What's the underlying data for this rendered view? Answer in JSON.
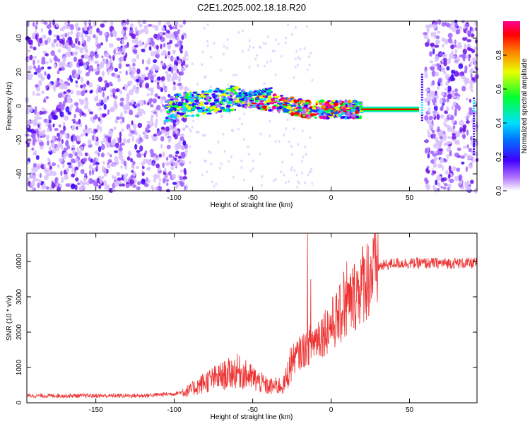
{
  "title": "C2E1.2025.002.18.18.R20",
  "chart_data": [
    {
      "type": "heatmap",
      "xlabel": "Height of straight line (km)",
      "ylabel": "Frequency (Hz)",
      "xlim": [
        -194,
        93
      ],
      "ylim": [
        -50,
        50
      ],
      "xticks": [
        -150,
        -100,
        -50,
        0,
        50
      ],
      "yticks": [
        -40,
        -20,
        0,
        20,
        40
      ],
      "colorbar": {
        "label": "Normalized spectral amplitude",
        "range": [
          0,
          1
        ],
        "ticks": [
          "0.0",
          "0.2",
          "0.4",
          "0.6",
          "0.8"
        ],
        "tick_values": [
          0,
          0.2,
          0.4,
          0.6,
          0.8
        ],
        "colormap": [
          "#ffffff",
          "#8000ff",
          "#0000ff",
          "#00d8ff",
          "#00ff40",
          "#e0ff00",
          "#ff8000",
          "#ff0000",
          "#ff0080"
        ]
      },
      "features": {
        "noise_regions_km": [
          [
            -194,
            -92
          ],
          [
            60,
            93
          ]
        ],
        "signal_ridge": [
          {
            "x": -100,
            "y": 0
          },
          {
            "x": -80,
            "y": 2
          },
          {
            "x": -60,
            "y": 5
          },
          {
            "x": -45,
            "y": 3
          },
          {
            "x": -30,
            "y": 1
          },
          {
            "x": -15,
            "y": -2
          },
          {
            "x": 0,
            "y": -2
          },
          {
            "x": 20,
            "y": -2
          },
          {
            "x": 56,
            "y": -2
          }
        ]
      }
    },
    {
      "type": "line",
      "xlabel": "Height of straight line (km)",
      "ylabel": "SNR (10 * v/v)",
      "xlim": [
        -194,
        93
      ],
      "ylim": [
        0,
        4800
      ],
      "xticks": [
        -150,
        -100,
        -50,
        0,
        50
      ],
      "yticks": [
        0,
        1000,
        2000,
        3000,
        4000
      ],
      "color": "#ee3333",
      "series": [
        {
          "trend": [
            {
              "x": -194,
              "y": 200
            },
            {
              "x": -120,
              "y": 200
            },
            {
              "x": -100,
              "y": 260
            },
            {
              "x": -90,
              "y": 350
            },
            {
              "x": -80,
              "y": 600
            },
            {
              "x": -70,
              "y": 750
            },
            {
              "x": -60,
              "y": 900
            },
            {
              "x": -50,
              "y": 700
            },
            {
              "x": -40,
              "y": 450
            },
            {
              "x": -30,
              "y": 500
            },
            {
              "x": -25,
              "y": 1200
            },
            {
              "x": -15,
              "y": 1600
            },
            {
              "x": 0,
              "y": 2200
            },
            {
              "x": 10,
              "y": 2700
            },
            {
              "x": 20,
              "y": 3400
            },
            {
              "x": 30,
              "y": 3850
            },
            {
              "x": 40,
              "y": 3950
            },
            {
              "x": 93,
              "y": 3950
            }
          ],
          "spikes": [
            {
              "x": -15,
              "y": 4800
            },
            {
              "x": -13,
              "y": 3500
            },
            {
              "x": 10,
              "y": 4000
            },
            {
              "x": 8,
              "y": 3700
            }
          ]
        }
      ]
    }
  ]
}
